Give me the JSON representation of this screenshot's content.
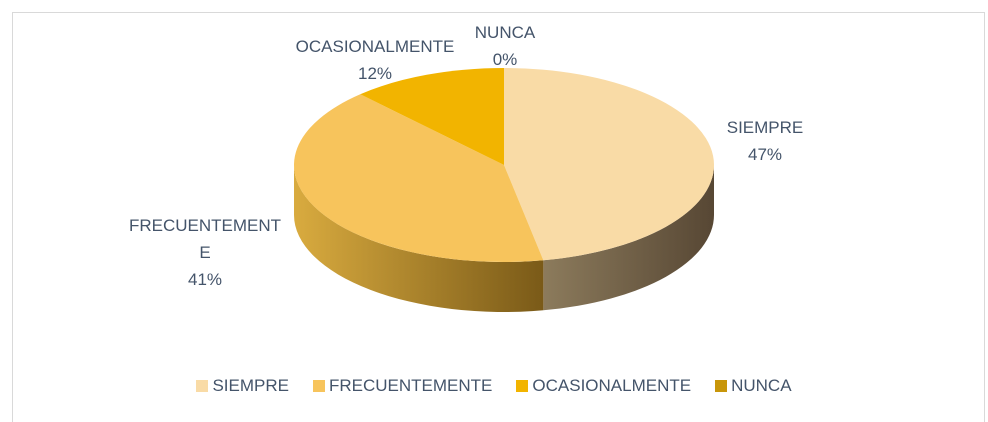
{
  "chart_data": {
    "type": "pie",
    "pie_3d": true,
    "categories": [
      "SIEMPRE",
      "FRECUENTEMENTE",
      "OCASIONALMENTE",
      "NUNCA"
    ],
    "values": [
      47,
      41,
      12,
      0
    ],
    "value_labels": [
      "47%",
      "41%",
      "12%",
      "0%"
    ],
    "colors": [
      "#f9dba6",
      "#f7c45c",
      "#f2b400",
      "#c8960a"
    ],
    "legend": "bottom"
  }
}
